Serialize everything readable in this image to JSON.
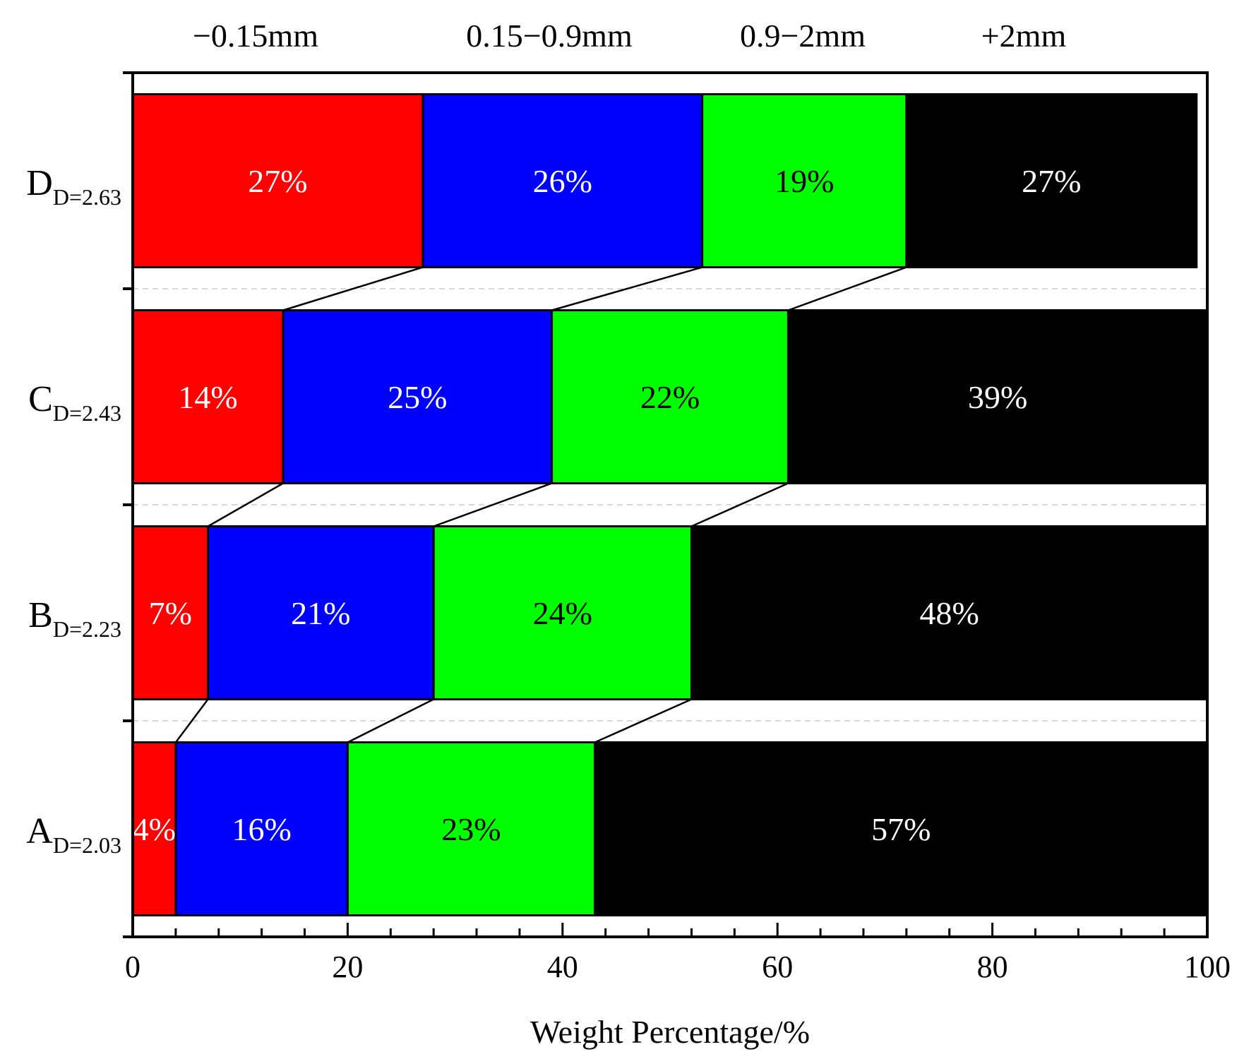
{
  "chart_data": {
    "type": "bar",
    "orientation": "horizontal",
    "stacked": true,
    "xlabel": "Weight Percentage/%",
    "xlim": [
      0,
      100
    ],
    "xticks": [
      "0",
      "20",
      "40",
      "60",
      "80",
      "100"
    ],
    "xtick_values": [
      0,
      20,
      40,
      60,
      80,
      100
    ],
    "categories": [
      {
        "main": "A",
        "sub": "D=2.03"
      },
      {
        "main": "B",
        "sub": "D=2.23"
      },
      {
        "main": "C",
        "sub": "D=2.43"
      },
      {
        "main": "D",
        "sub": "D=2.63"
      }
    ],
    "series": [
      {
        "name": "−0.15mm",
        "color": "#ff0000",
        "label_color": "#ffffff",
        "values": [
          4,
          7,
          14,
          27
        ],
        "labels": [
          "4%",
          "7%",
          "14%",
          "27%"
        ]
      },
      {
        "name": "0.15−0.9mm",
        "color": "#0000ff",
        "label_color": "#ffffff",
        "values": [
          16,
          21,
          25,
          26
        ],
        "labels": [
          "16%",
          "21%",
          "25%",
          "26%"
        ]
      },
      {
        "name": "0.9−2mm",
        "color": "#00ff00",
        "label_color": "#000000",
        "values": [
          23,
          24,
          22,
          19
        ],
        "labels": [
          "23%",
          "24%",
          "22%",
          "19%"
        ]
      },
      {
        "name": "+2mm",
        "color": "#000000",
        "label_color": "#ffffff",
        "values": [
          57,
          48,
          39,
          27
        ],
        "labels": [
          "57%",
          "48%",
          "39%",
          "27%"
        ]
      }
    ],
    "series_links": true,
    "legend_position": "top"
  }
}
